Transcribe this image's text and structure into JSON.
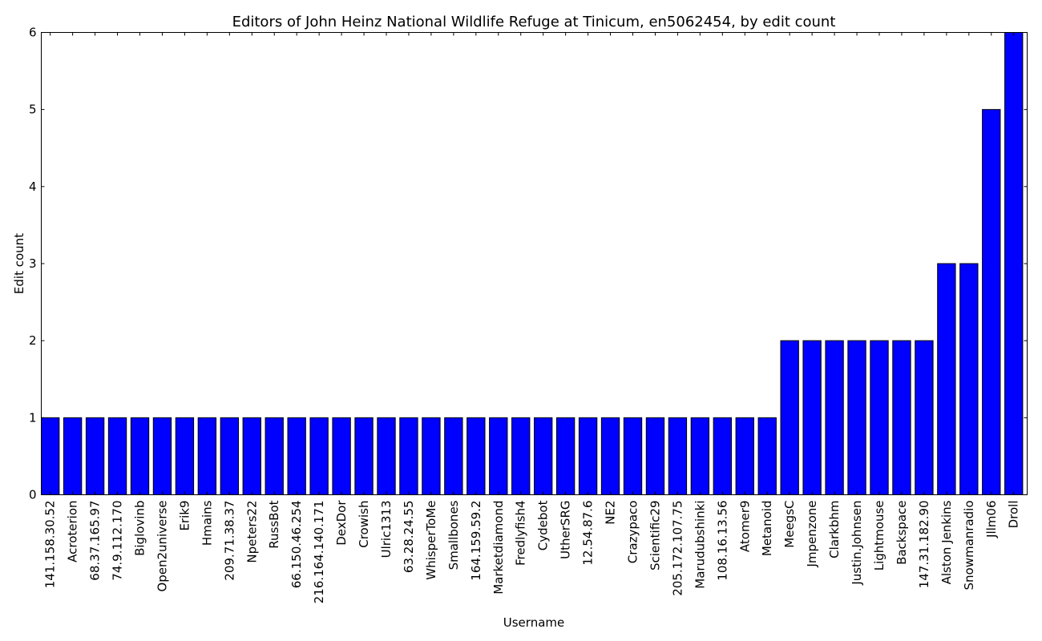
{
  "chart_data": {
    "type": "bar",
    "title": "Editors of John Heinz National Wildlife Refuge at Tinicum, en5062454, by edit count",
    "xlabel": "Username",
    "ylabel": "Edit count",
    "ylim": [
      0,
      6
    ],
    "yticks": [
      0,
      1,
      2,
      3,
      4,
      5,
      6
    ],
    "grid": false,
    "legend": "none",
    "bar_color": "#0000ff",
    "categories": [
      "141.158.30.52",
      "Acroterion",
      "68.37.165.97",
      "74.9.112.170",
      "Biglovinb",
      "Open2universe",
      "Erik9",
      "Hmains",
      "209.71.38.37",
      "Npeters22",
      "RussBot",
      "66.150.46.254",
      "216.164.140.171",
      "DexDor",
      "Crowish",
      "Ulric1313",
      "63.28.24.55",
      "WhisperToMe",
      "Smallbones",
      "164.159.59.2",
      "Marketdiamond",
      "Fredlyfish4",
      "Cydebot",
      "UtherSRG",
      "12.54.87.6",
      "NE2",
      "Crazypaco",
      "Scientific29",
      "205.172.107.75",
      "Marudubshinki",
      "108.16.13.56",
      "Atomer9",
      "Metanoid",
      "MeegsC",
      "Jmpenzone",
      "Clarkbhm",
      "Justin.Johnsen",
      "Lightmouse",
      "Backspace",
      "147.31.182.90",
      "Alston Jenkins",
      "Snowmanradio",
      "Jllm06",
      "Droll"
    ],
    "values": [
      1,
      1,
      1,
      1,
      1,
      1,
      1,
      1,
      1,
      1,
      1,
      1,
      1,
      1,
      1,
      1,
      1,
      1,
      1,
      1,
      1,
      1,
      1,
      1,
      1,
      1,
      1,
      1,
      1,
      1,
      1,
      1,
      1,
      2,
      2,
      2,
      2,
      2,
      2,
      2,
      3,
      3,
      5,
      6
    ]
  }
}
